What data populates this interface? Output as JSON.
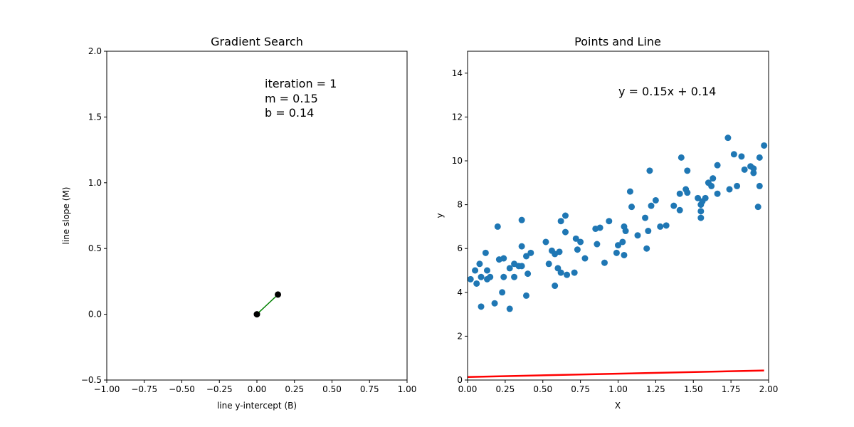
{
  "chart_data": [
    {
      "type": "line",
      "title": "Gradient Search",
      "xlabel": "line y-intercept (B)",
      "ylabel": "line slope (M)",
      "xlim": [
        -1.0,
        1.0
      ],
      "ylim": [
        -0.5,
        2.0
      ],
      "xticks": [
        "−1.00",
        "−0.75",
        "−0.50",
        "−0.25",
        "0.00",
        "0.25",
        "0.50",
        "0.75",
        "1.00"
      ],
      "xtick_values": [
        -1.0,
        -0.75,
        -0.5,
        -0.25,
        0.0,
        0.25,
        0.5,
        0.75,
        1.0
      ],
      "yticks": [
        "−0.5",
        "0.0",
        "0.5",
        "1.0",
        "1.5",
        "2.0"
      ],
      "ytick_values": [
        -0.5,
        0.0,
        0.5,
        1.0,
        1.5,
        2.0
      ],
      "path": [
        {
          "b": 0.0,
          "m": 0.0
        },
        {
          "b": 0.14,
          "m": 0.15
        }
      ],
      "line_color": "#008000",
      "marker_color": "#000000",
      "annotations": [
        "iteration = 1",
        "m = 0.15",
        "b = 0.14"
      ]
    },
    {
      "type": "scatter",
      "title": "Points and Line",
      "xlabel": "X",
      "ylabel": "y",
      "xlim": [
        0.0,
        2.0
      ],
      "ylim": [
        0,
        15
      ],
      "xticks": [
        "0.00",
        "0.25",
        "0.50",
        "0.75",
        "1.00",
        "1.25",
        "1.50",
        "1.75",
        "2.00"
      ],
      "xtick_values": [
        0.0,
        0.25,
        0.5,
        0.75,
        1.0,
        1.25,
        1.5,
        1.75,
        2.0
      ],
      "yticks": [
        "0",
        "2",
        "4",
        "6",
        "8",
        "10",
        "12",
        "14"
      ],
      "ytick_values": [
        0,
        2,
        4,
        6,
        8,
        10,
        12,
        14
      ],
      "points": [
        [
          0.02,
          4.6
        ],
        [
          0.05,
          5.0
        ],
        [
          0.06,
          4.4
        ],
        [
          0.08,
          5.3
        ],
        [
          0.09,
          3.35
        ],
        [
          0.09,
          4.7
        ],
        [
          0.12,
          5.8
        ],
        [
          0.13,
          4.6
        ],
        [
          0.13,
          5.0
        ],
        [
          0.15,
          4.7
        ],
        [
          0.18,
          3.5
        ],
        [
          0.2,
          7.0
        ],
        [
          0.21,
          5.5
        ],
        [
          0.23,
          4.0
        ],
        [
          0.24,
          5.55
        ],
        [
          0.24,
          4.7
        ],
        [
          0.28,
          3.25
        ],
        [
          0.28,
          5.1
        ],
        [
          0.31,
          5.3
        ],
        [
          0.31,
          4.7
        ],
        [
          0.34,
          5.2
        ],
        [
          0.36,
          5.2
        ],
        [
          0.36,
          7.3
        ],
        [
          0.36,
          6.1
        ],
        [
          0.39,
          5.65
        ],
        [
          0.39,
          3.85
        ],
        [
          0.4,
          4.85
        ],
        [
          0.42,
          5.8
        ],
        [
          0.52,
          6.3
        ],
        [
          0.54,
          5.3
        ],
        [
          0.56,
          5.9
        ],
        [
          0.58,
          5.75
        ],
        [
          0.58,
          4.3
        ],
        [
          0.6,
          5.1
        ],
        [
          0.61,
          5.85
        ],
        [
          0.62,
          4.9
        ],
        [
          0.62,
          7.25
        ],
        [
          0.65,
          7.5
        ],
        [
          0.65,
          6.75
        ],
        [
          0.66,
          4.8
        ],
        [
          0.71,
          4.9
        ],
        [
          0.72,
          6.45
        ],
        [
          0.73,
          5.95
        ],
        [
          0.75,
          6.3
        ],
        [
          0.78,
          5.55
        ],
        [
          0.85,
          6.9
        ],
        [
          0.86,
          6.2
        ],
        [
          0.88,
          6.95
        ],
        [
          0.91,
          5.35
        ],
        [
          0.94,
          7.25
        ],
        [
          0.99,
          5.8
        ],
        [
          1.0,
          6.15
        ],
        [
          1.03,
          6.3
        ],
        [
          1.04,
          5.7
        ],
        [
          1.04,
          7.0
        ],
        [
          1.05,
          6.8
        ],
        [
          1.08,
          8.6
        ],
        [
          1.09,
          7.9
        ],
        [
          1.13,
          6.6
        ],
        [
          1.18,
          7.4
        ],
        [
          1.19,
          6.0
        ],
        [
          1.2,
          6.8
        ],
        [
          1.21,
          9.55
        ],
        [
          1.22,
          7.95
        ],
        [
          1.25,
          8.2
        ],
        [
          1.28,
          7.0
        ],
        [
          1.32,
          7.05
        ],
        [
          1.37,
          7.95
        ],
        [
          1.41,
          7.75
        ],
        [
          1.42,
          10.15
        ],
        [
          1.41,
          8.5
        ],
        [
          1.45,
          8.7
        ],
        [
          1.46,
          9.55
        ],
        [
          1.46,
          8.55
        ],
        [
          1.53,
          8.3
        ],
        [
          1.55,
          7.7
        ],
        [
          1.55,
          7.4
        ],
        [
          1.55,
          8.0
        ],
        [
          1.56,
          8.15
        ],
        [
          1.58,
          8.3
        ],
        [
          1.6,
          9.0
        ],
        [
          1.62,
          8.85
        ],
        [
          1.63,
          9.2
        ],
        [
          1.66,
          8.5
        ],
        [
          1.66,
          9.8
        ],
        [
          1.73,
          11.05
        ],
        [
          1.74,
          8.7
        ],
        [
          1.77,
          10.3
        ],
        [
          1.79,
          8.85
        ],
        [
          1.82,
          10.2
        ],
        [
          1.84,
          9.6
        ],
        [
          1.88,
          9.75
        ],
        [
          1.9,
          9.45
        ],
        [
          1.9,
          9.65
        ],
        [
          1.93,
          7.9
        ],
        [
          1.94,
          8.85
        ],
        [
          1.94,
          10.15
        ],
        [
          1.97,
          10.7
        ]
      ],
      "point_color": "#1f77b4",
      "fit_line": {
        "m": 0.15,
        "b": 0.14,
        "color": "#ff0000"
      },
      "annotation": "y = 0.15x + 0.14"
    }
  ]
}
